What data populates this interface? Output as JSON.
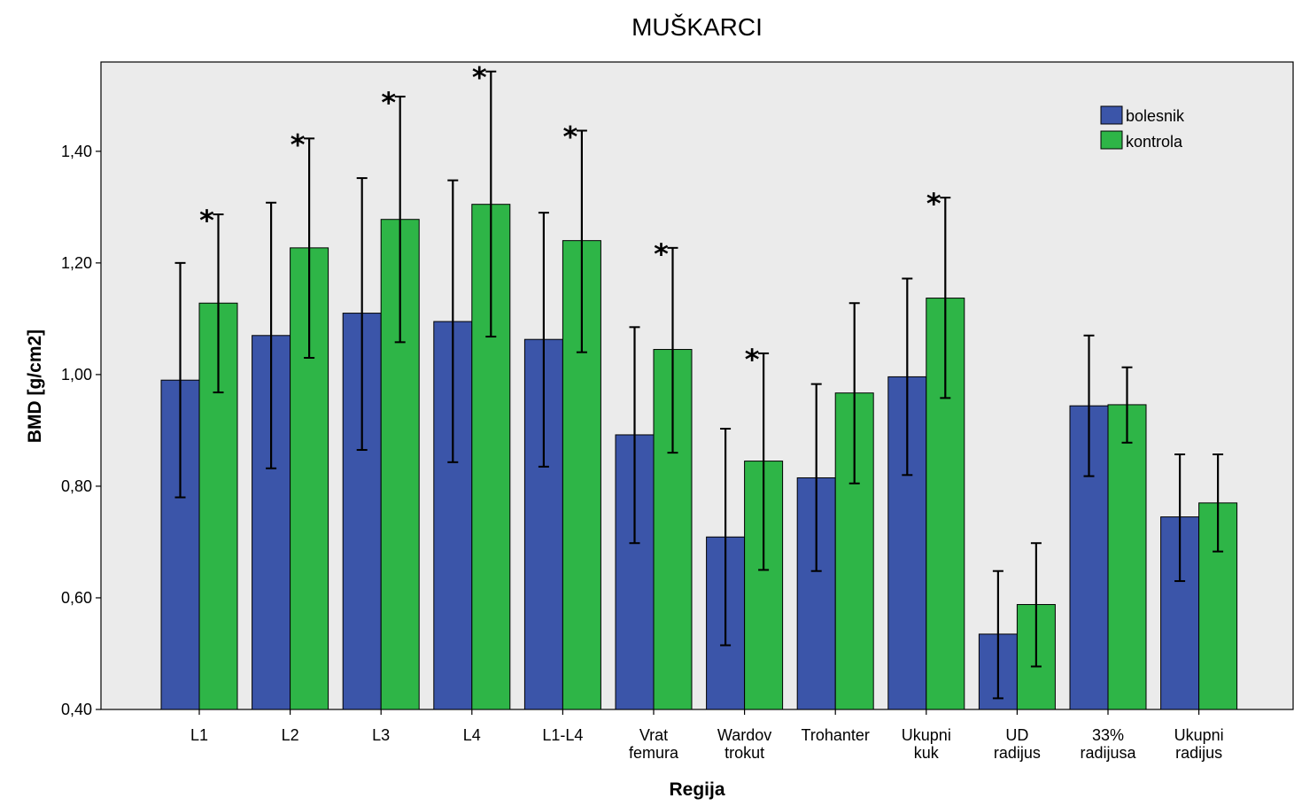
{
  "chart_data": {
    "type": "bar",
    "title": "MUŠKARCI",
    "xlabel": "Regija",
    "ylabel": "BMD [g/cm2]",
    "ylim": [
      0.4,
      1.56
    ],
    "yticks": [
      "0,40",
      "0,60",
      "0,80",
      "1,00",
      "1,20",
      "1,40"
    ],
    "ytick_values": [
      0.4,
      0.6,
      0.8,
      1.0,
      1.2,
      1.4
    ],
    "categories": [
      [
        "L1"
      ],
      [
        "L2"
      ],
      [
        "L3"
      ],
      [
        "L4"
      ],
      [
        "L1-L4"
      ],
      [
        "Vrat",
        "femura"
      ],
      [
        "Wardov",
        "trokut"
      ],
      [
        "Trohanter"
      ],
      [
        "Ukupni",
        "kuk"
      ],
      [
        "UD",
        "radijus"
      ],
      [
        "33%",
        "radijusa"
      ],
      [
        "Ukupni",
        "radijus"
      ]
    ],
    "series": [
      {
        "name": "bolesnik",
        "color": "#3b55a9",
        "values": [
          0.99,
          1.07,
          1.11,
          1.095,
          1.063,
          0.892,
          0.709,
          0.815,
          0.996,
          0.535,
          0.944,
          0.745
        ],
        "err_low": [
          0.78,
          0.832,
          0.865,
          0.843,
          0.835,
          0.698,
          0.515,
          0.648,
          0.82,
          0.42,
          0.818,
          0.63
        ],
        "err_high": [
          1.2,
          1.308,
          1.352,
          1.348,
          1.29,
          1.085,
          0.903,
          0.983,
          1.172,
          0.648,
          1.07,
          0.857
        ]
      },
      {
        "name": "kontrola",
        "color": "#2eb547",
        "values": [
          1.128,
          1.227,
          1.278,
          1.305,
          1.24,
          1.045,
          0.845,
          0.967,
          1.137,
          0.588,
          0.946,
          0.77
        ],
        "err_low": [
          0.968,
          1.03,
          1.058,
          1.068,
          1.04,
          0.86,
          0.65,
          0.805,
          0.958,
          0.477,
          0.878,
          0.683
        ],
        "err_high": [
          1.287,
          1.423,
          1.498,
          1.543,
          1.437,
          1.227,
          1.038,
          1.128,
          1.317,
          0.698,
          1.013,
          0.857
        ]
      }
    ],
    "significance_marker": "*",
    "significant_categories": [
      0,
      1,
      2,
      3,
      4,
      5,
      6,
      8
    ],
    "legend": {
      "placement": "top-right"
    },
    "background_color": "#ebebeb",
    "grid": false
  }
}
